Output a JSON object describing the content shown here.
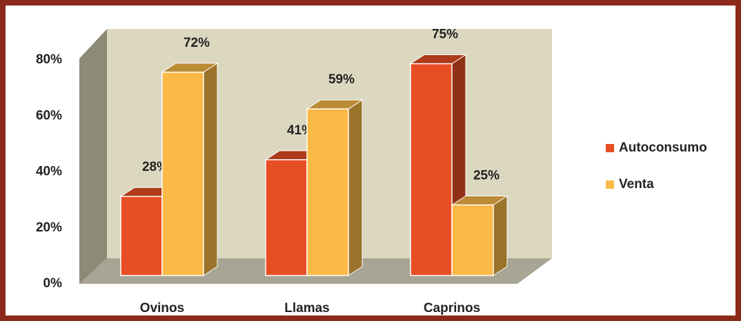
{
  "chart_data": {
    "type": "bar3d",
    "categories": [
      "Ovinos",
      "Llamas",
      "Caprinos"
    ],
    "series": [
      {
        "name": "Autoconsumo",
        "color": "#e84e23",
        "values": [
          28,
          41,
          75
        ],
        "value_labels": [
          "28%",
          "41%",
          "75%"
        ]
      },
      {
        "name": "Venta",
        "color": "#fbb946",
        "values": [
          72,
          59,
          25
        ],
        "value_labels": [
          "72%",
          "59%",
          "25%"
        ]
      }
    ],
    "ylim": [
      0,
      80
    ],
    "yticks": [
      {
        "value": 0,
        "label": "0%"
      },
      {
        "value": 20,
        "label": "20%"
      },
      {
        "value": 40,
        "label": "40%"
      },
      {
        "value": 60,
        "label": "60%"
      },
      {
        "value": 80,
        "label": "80%"
      }
    ],
    "legend": "right"
  }
}
